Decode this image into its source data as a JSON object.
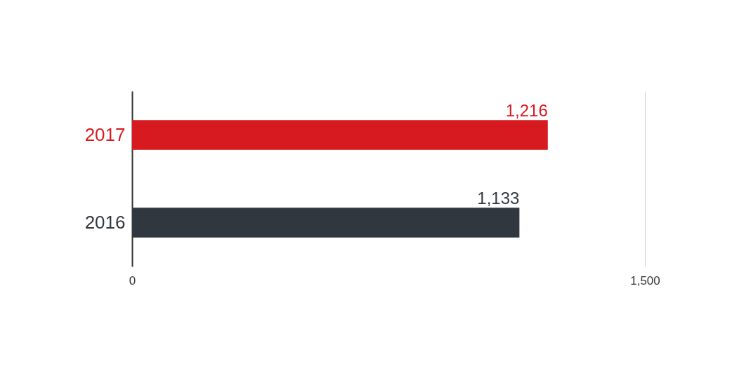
{
  "chart_data": {
    "type": "bar",
    "orientation": "horizontal",
    "categories": [
      "2017",
      "2016"
    ],
    "values": [
      1216,
      1133
    ],
    "colors": [
      "#d71920",
      "#31373e"
    ],
    "value_labels": [
      "1,216",
      "1,133"
    ],
    "xlim": [
      0,
      1500
    ],
    "xticks": [
      0,
      {
        "value": 1500,
        "label": "1,500"
      }
    ],
    "grid": "x"
  }
}
